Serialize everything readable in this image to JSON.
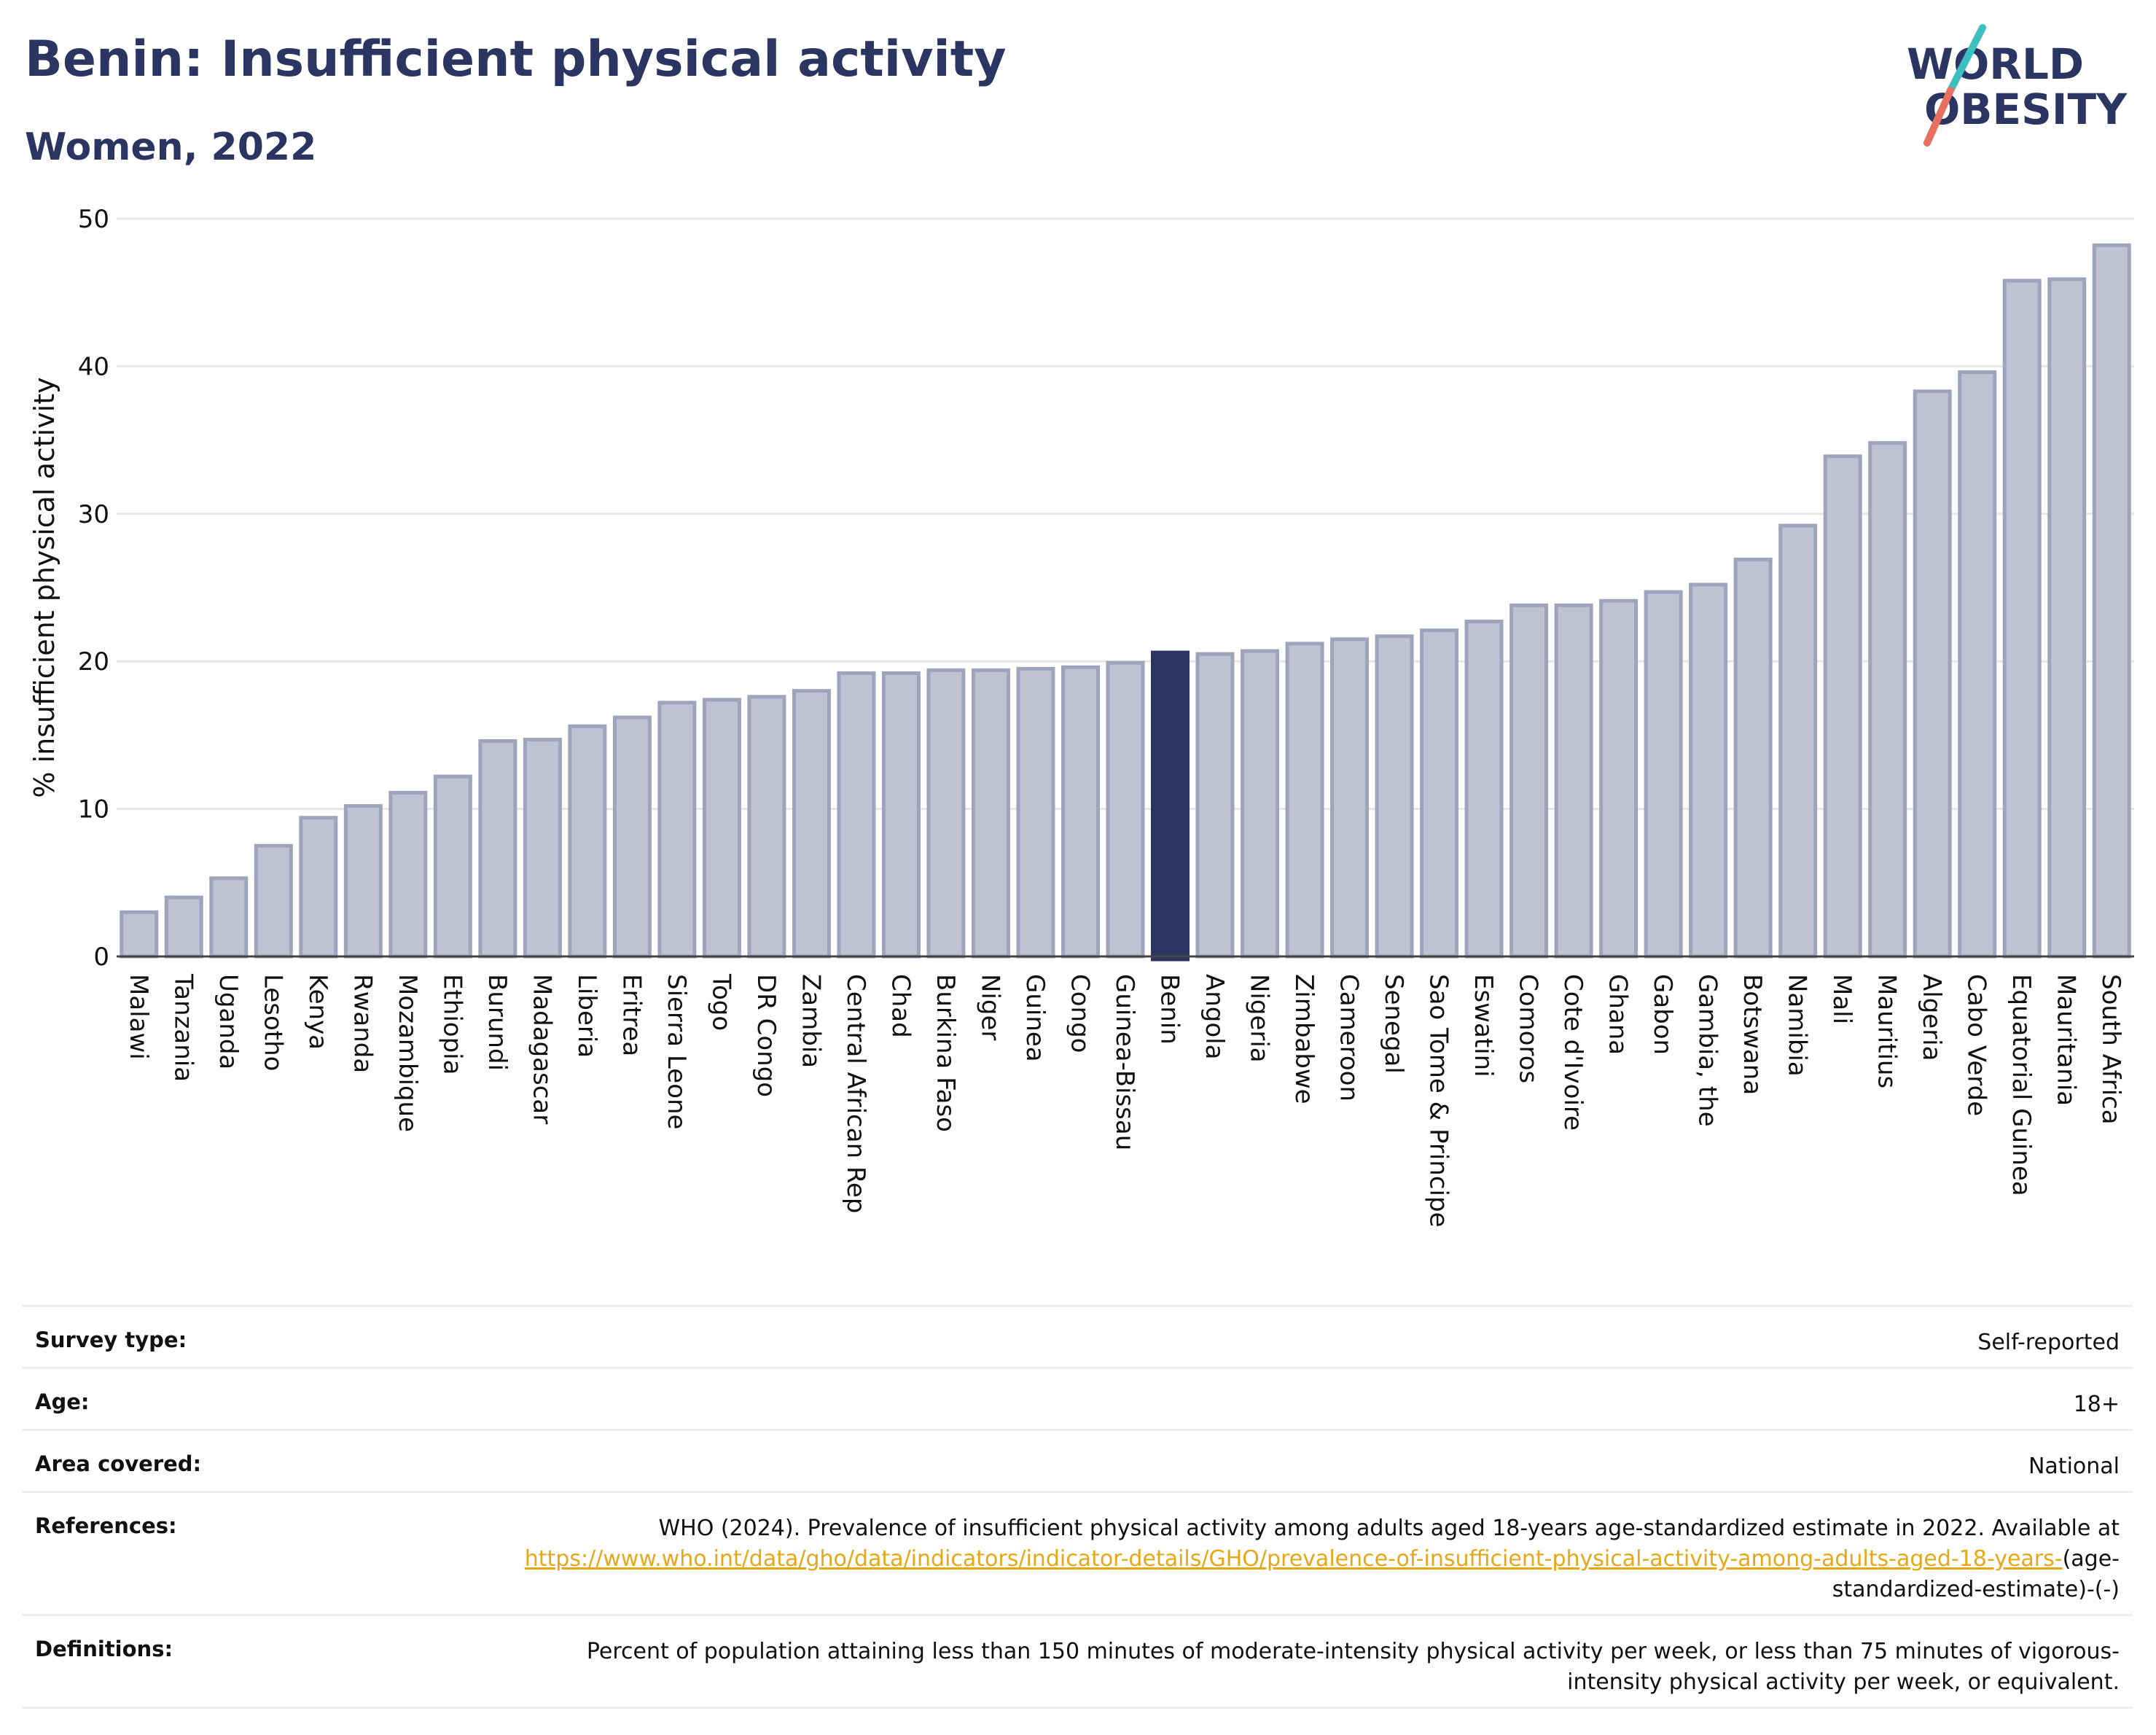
{
  "header": {
    "title": "Benin: Insufficient physical activity",
    "subtitle": "Women, 2022"
  },
  "logo": {
    "line1": "WORLD",
    "line2": "OBESITY",
    "colors": {
      "text": "#2b3561",
      "slash_teal": "#3cbfbe",
      "slash_coral": "#e8705f"
    }
  },
  "colors": {
    "bar_fill": "#bec2d1",
    "bar_stroke": "#9ea4bc",
    "highlight": "#2b3561",
    "title": "#2b3561",
    "link": "#e6a817"
  },
  "chart_data": {
    "type": "bar",
    "ylabel": "% insufficient physical activity",
    "xlabel": "",
    "ylim": [
      0,
      50
    ],
    "yticks": [
      0,
      10,
      20,
      30,
      40,
      50
    ],
    "grid": true,
    "highlight": "Benin",
    "categories": [
      "Malawi",
      "Tanzania",
      "Uganda",
      "Lesotho",
      "Kenya",
      "Rwanda",
      "Mozambique",
      "Ethiopia",
      "Burundi",
      "Madagascar",
      "Liberia",
      "Eritrea",
      "Sierra Leone",
      "Togo",
      "DR Congo",
      "Zambia",
      "Central African Rep",
      "Chad",
      "Burkina Faso",
      "Niger",
      "Guinea",
      "Congo",
      "Guinea-Bissau",
      "Benin",
      "Angola",
      "Nigeria",
      "Zimbabwe",
      "Cameroon",
      "Senegal",
      "Sao Tome & Principe",
      "Eswatini",
      "Comoros",
      "Cote d'Ivoire",
      "Ghana",
      "Gabon",
      "Gambia, the",
      "Botswana",
      "Namibia",
      "Mali",
      "Mauritius",
      "Algeria",
      "Cabo Verde",
      "Equatorial Guinea",
      "Mauritania",
      "South Africa"
    ],
    "values": [
      3.0,
      4.0,
      5.3,
      7.5,
      9.4,
      10.2,
      11.1,
      12.2,
      14.6,
      14.7,
      15.6,
      16.2,
      17.2,
      17.4,
      17.6,
      18.0,
      19.2,
      19.2,
      19.4,
      19.4,
      19.5,
      19.6,
      19.9,
      20.6,
      20.5,
      20.7,
      21.2,
      21.5,
      21.7,
      22.1,
      22.7,
      23.8,
      23.8,
      24.1,
      24.7,
      25.2,
      26.9,
      29.2,
      33.9,
      34.8,
      38.3,
      39.6,
      45.8,
      45.9,
      48.2
    ]
  },
  "meta": [
    {
      "label": "Survey type:",
      "value": "Self-reported"
    },
    {
      "label": "Age:",
      "value": "18+"
    },
    {
      "label": "Area covered:",
      "value": "National"
    },
    {
      "label": "References:",
      "value_prefix": "WHO (2024). Prevalence of insufficient physical activity among adults aged 18-years age-standardized estimate in 2022. Available at",
      "link": "https://www.who.int/data/gho/data/indicators/indicator-details/GHO/prevalence-of-insufficient-physical-activity-among-adults-aged-18-years-",
      "value_suffix": "(age-standardized-estimate)-(-)"
    },
    {
      "label": "Definitions:",
      "value": "Percent of population attaining less than 150 minutes of moderate-intensity physical activity per week, or less than 75 minutes of vigorous-intensity physical activity per week, or equivalent."
    }
  ]
}
